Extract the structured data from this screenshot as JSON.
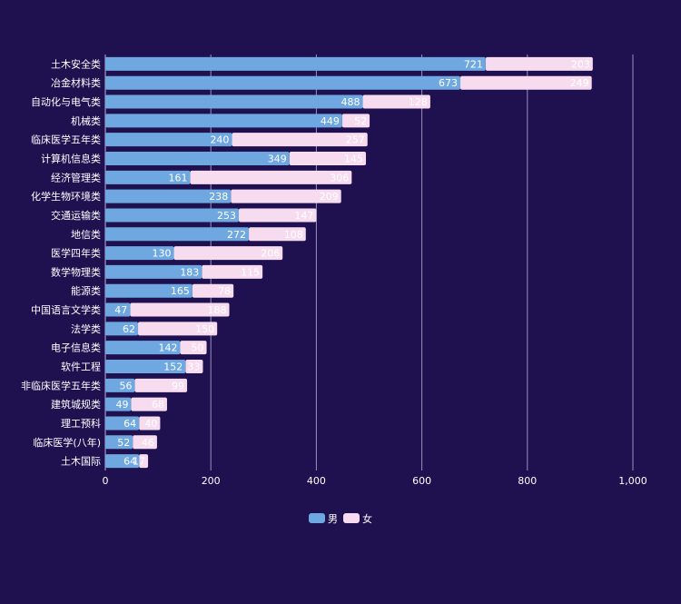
{
  "chart_data": {
    "type": "bar",
    "orientation": "horizontal",
    "stacked": true,
    "categories": [
      "土木安全类",
      "冶金材料类",
      "自动化与电气类",
      "机械类",
      "临床医学五年类",
      "计算机信息类",
      "经济管理类",
      "化学生物环境类",
      "交通运输类",
      "地信类",
      "医学四年类",
      "数学物理类",
      "能源类",
      "中国语言文学类",
      "法学类",
      "电子信息类",
      "软件工程",
      "非临床医学五年类",
      "建筑城规类",
      "理工预科",
      "临床医学(八年)",
      "土木国际"
    ],
    "series": [
      {
        "name": "男",
        "color": "#6fa8e0",
        "values": [
          721,
          673,
          488,
          449,
          240,
          349,
          161,
          238,
          253,
          272,
          130,
          183,
          165,
          47,
          62,
          142,
          152,
          56,
          49,
          64,
          52,
          64
        ]
      },
      {
        "name": "女",
        "color": "#f6dcee",
        "values": [
          203,
          249,
          128,
          52,
          257,
          145,
          306,
          209,
          147,
          108,
          206,
          115,
          78,
          188,
          150,
          50,
          33,
          99,
          68,
          40,
          46,
          17
        ]
      }
    ],
    "xlim": [
      0,
      1000
    ],
    "x_ticks": [
      0,
      200,
      400,
      600,
      800,
      1000
    ],
    "x_tick_labels": [
      "0",
      "200",
      "400",
      "600",
      "800",
      "1,000"
    ],
    "grid": "vertical",
    "legend_position": "bottom-center",
    "colors": {
      "background": "#1f1150",
      "grid": "#b8b0d8",
      "axis_text": "#ffffff",
      "bar_label": "#ffffff"
    }
  }
}
